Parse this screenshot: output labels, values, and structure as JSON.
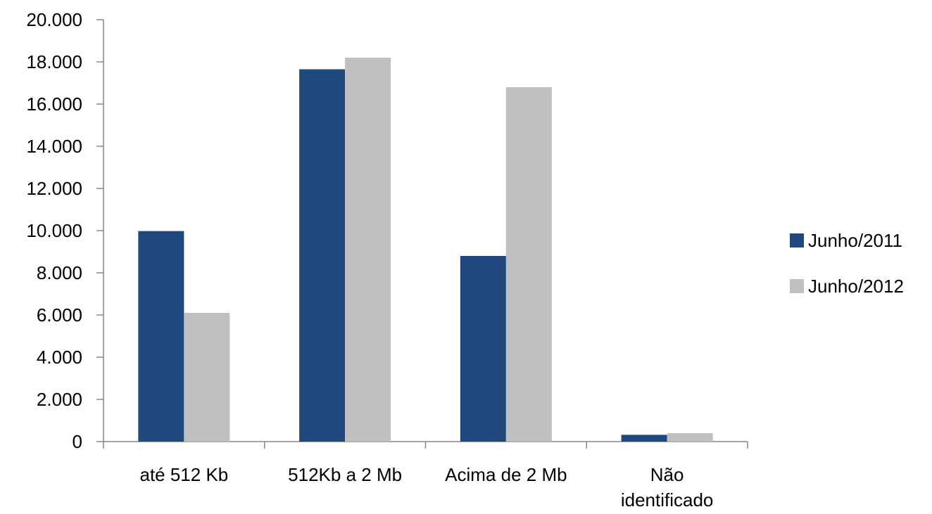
{
  "chart_data": {
    "type": "bar",
    "categories": [
      [
        "até 512 Kb"
      ],
      [
        "512Kb a 2 Mb"
      ],
      [
        "Acima de 2 Mb"
      ],
      [
        "Não",
        "identificado"
      ]
    ],
    "series": [
      {
        "name": "Junho/2011",
        "color": "#1f497d",
        "values": [
          9980,
          17650,
          8800,
          320
        ]
      },
      {
        "name": "Junho/2012",
        "color": "#c0c0c0",
        "values": [
          6100,
          18200,
          16800,
          400
        ]
      }
    ],
    "ylim": [
      0,
      20000
    ],
    "yticks": [
      0,
      2000,
      4000,
      6000,
      8000,
      10000,
      12000,
      14000,
      16000,
      18000,
      20000
    ],
    "ytick_labels": [
      "0",
      "2.000",
      "4.000",
      "6.000",
      "8.000",
      "10.000",
      "12.000",
      "14.000",
      "16.000",
      "18.000",
      "20.000"
    ],
    "title": "",
    "xlabel": "",
    "ylabel": "",
    "grid": false,
    "legend_position": "right"
  }
}
